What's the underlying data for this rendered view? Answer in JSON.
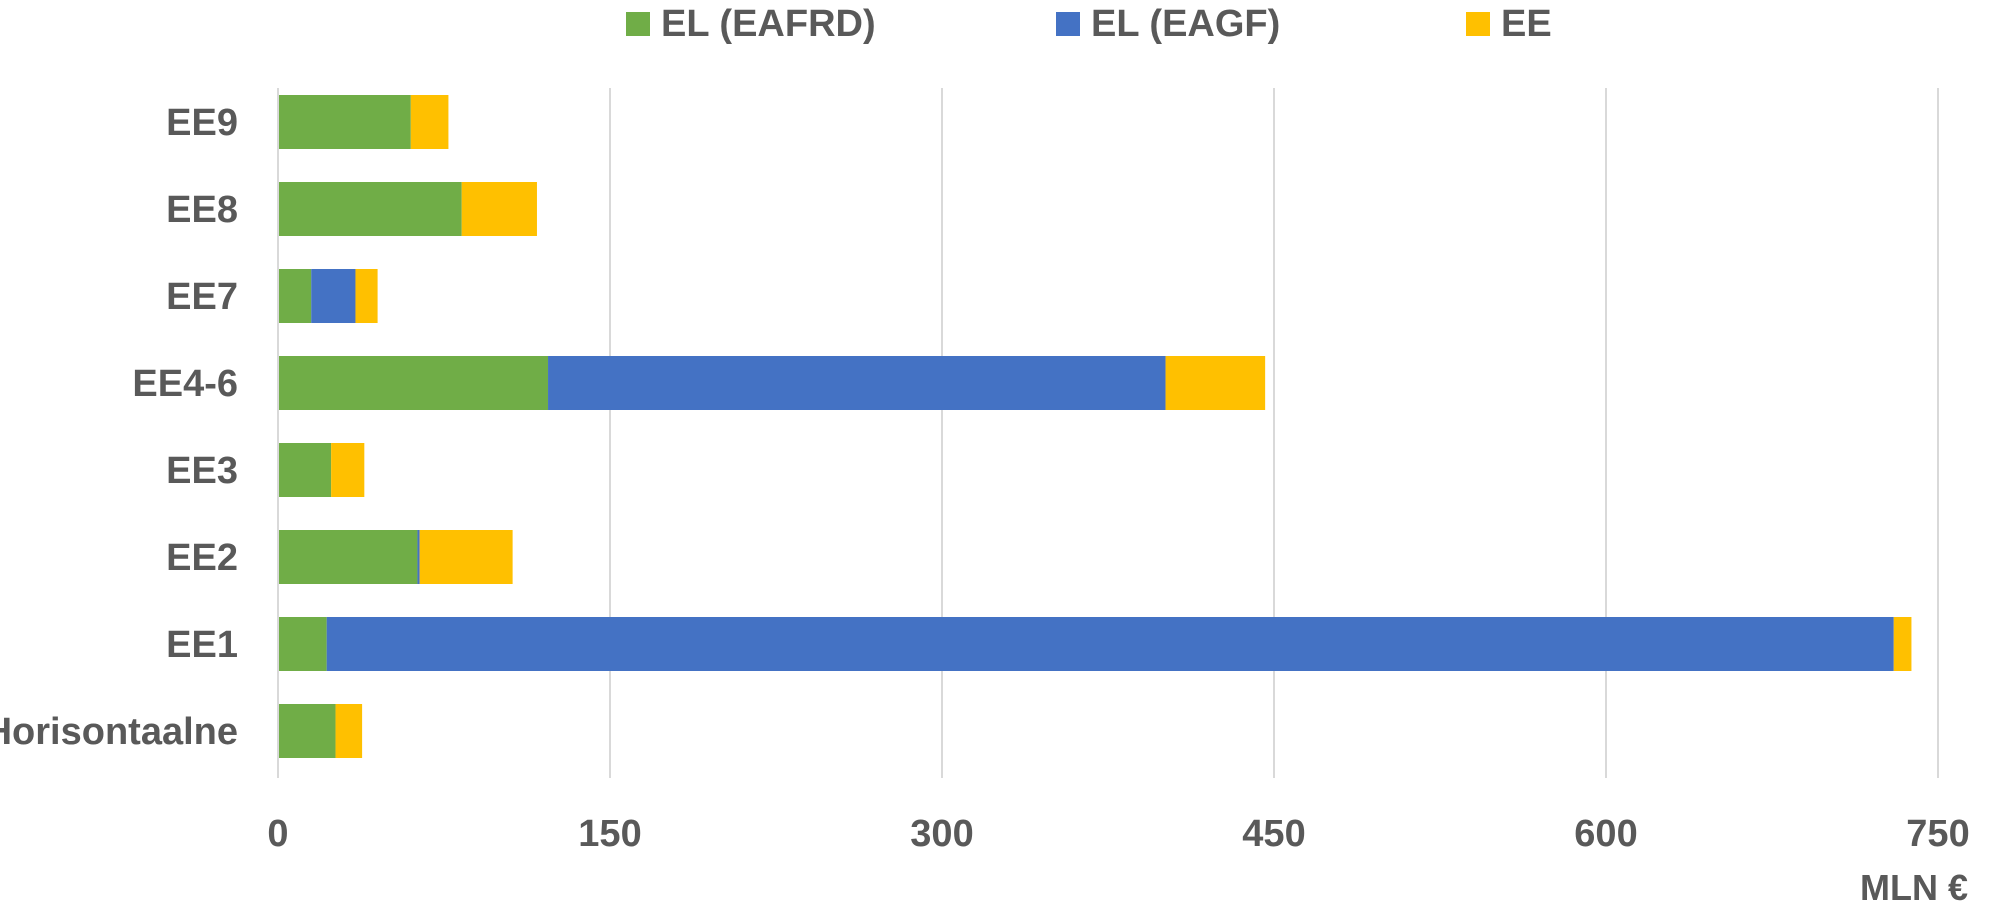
{
  "chart_data": {
    "type": "bar",
    "orientation": "horizontal",
    "stacked": true,
    "categories": [
      "EE9",
      "EE8",
      "EE7",
      "EE4-6",
      "EE3",
      "EE2",
      "EE1",
      "Horisontaalne"
    ],
    "series": [
      {
        "name": "EL (EAFRD)",
        "color": "#70AD47",
        "values": [
          60,
          83,
          15,
          122,
          24,
          63,
          22,
          26
        ]
      },
      {
        "name": "EL (EAGF)",
        "color": "#4472C4",
        "values": [
          0,
          0,
          20,
          279,
          0,
          1,
          708,
          0
        ]
      },
      {
        "name": "EE",
        "color": "#FFC000",
        "values": [
          17,
          34,
          10,
          45,
          15,
          42,
          8,
          12
        ]
      }
    ],
    "title": "",
    "xlabel": "MLN €",
    "ylabel": "",
    "xlim": [
      0,
      750
    ],
    "xticks": [
      "0",
      "150",
      "300",
      "450",
      "600",
      "750"
    ],
    "grid": "vertical",
    "legend_position": "top"
  }
}
